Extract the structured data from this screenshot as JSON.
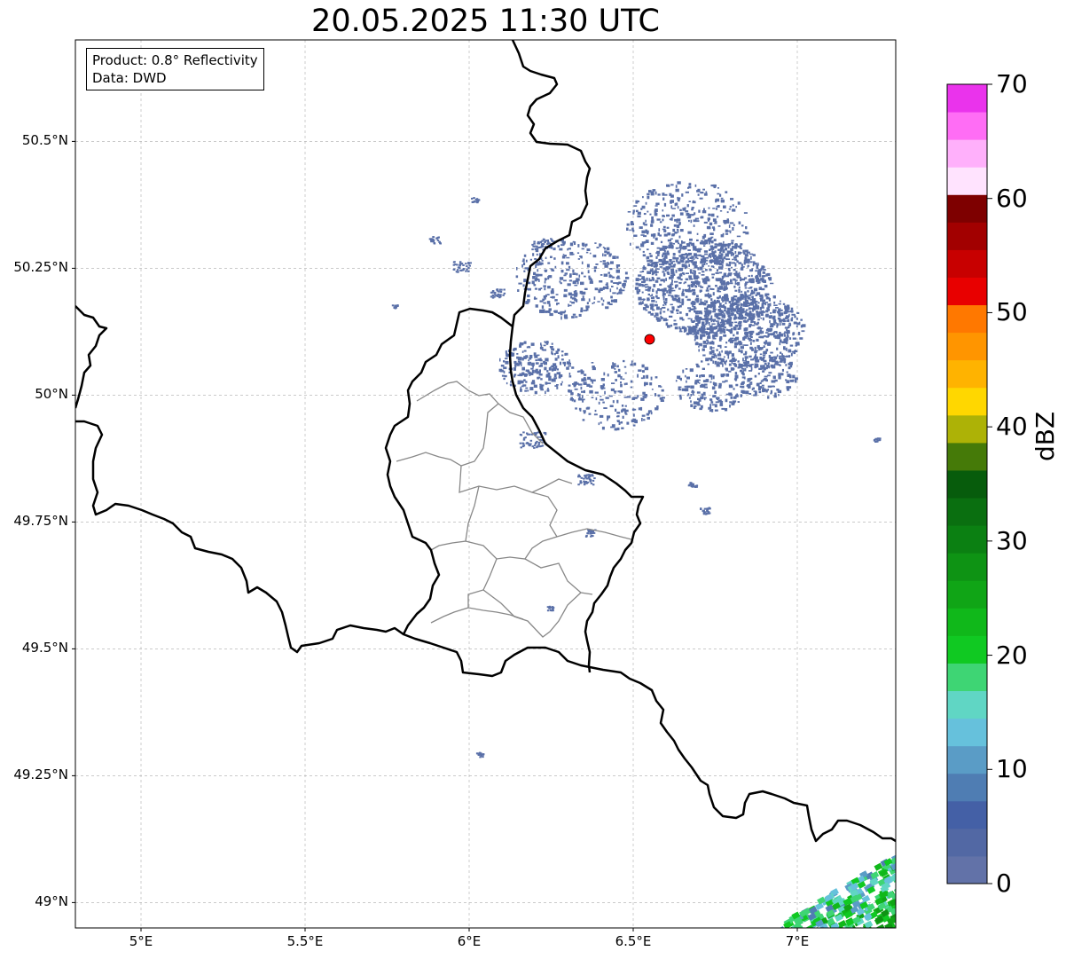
{
  "title": "20.05.2025 11:30 UTC",
  "info": {
    "product_line": "Product: 0.8° Reflectivity",
    "data_line": "Data: DWD"
  },
  "map": {
    "lon_range": [
      4.8,
      7.3
    ],
    "lat_range": [
      48.95,
      50.7
    ],
    "lon_ticks": [
      {
        "value": 5.0,
        "label": "5°E"
      },
      {
        "value": 5.5,
        "label": "5.5°E"
      },
      {
        "value": 6.0,
        "label": "6°E"
      },
      {
        "value": 6.5,
        "label": "6.5°E"
      },
      {
        "value": 7.0,
        "label": "7°E"
      }
    ],
    "lat_ticks": [
      {
        "value": 50.5,
        "label": "50.5°N"
      },
      {
        "value": 50.25,
        "label": "50.25°N"
      },
      {
        "value": 50.0,
        "label": "50°N"
      },
      {
        "value": 49.75,
        "label": "49.75°N"
      },
      {
        "value": 49.5,
        "label": "49.5°N"
      },
      {
        "value": 49.25,
        "label": "49.25°N"
      },
      {
        "value": 49.0,
        "label": "49°N"
      }
    ],
    "grid": true,
    "radar_site": {
      "lon": 6.55,
      "lat": 50.11,
      "color": "#ff0000"
    },
    "echo_color_low": "#5a70a8",
    "border_color": "#000000",
    "subdivision_color": "#888888"
  },
  "colorbar": {
    "label": "dBZ",
    "min": 0,
    "max": 70,
    "step": 2.5,
    "tick_labels": [
      "0",
      "10",
      "20",
      "30",
      "40",
      "50",
      "60",
      "70"
    ],
    "colors": [
      "#6272a8",
      "#5268a4",
      "#4460a6",
      "#4f7db3",
      "#5a9cc6",
      "#66c1dc",
      "#60d6c4",
      "#3ed574",
      "#10c922",
      "#10b81a",
      "#10a516",
      "#0e9314",
      "#0b8012",
      "#0a6f10",
      "#075c0c",
      "#457a08",
      "#adb206",
      "#ffd700",
      "#ffb300",
      "#ff9500",
      "#ff7800",
      "#e80000",
      "#c80000",
      "#a20000",
      "#7e0000",
      "#ffe3fe",
      "#ffb0fb",
      "#ff6df5",
      "#ea33ec"
    ]
  }
}
